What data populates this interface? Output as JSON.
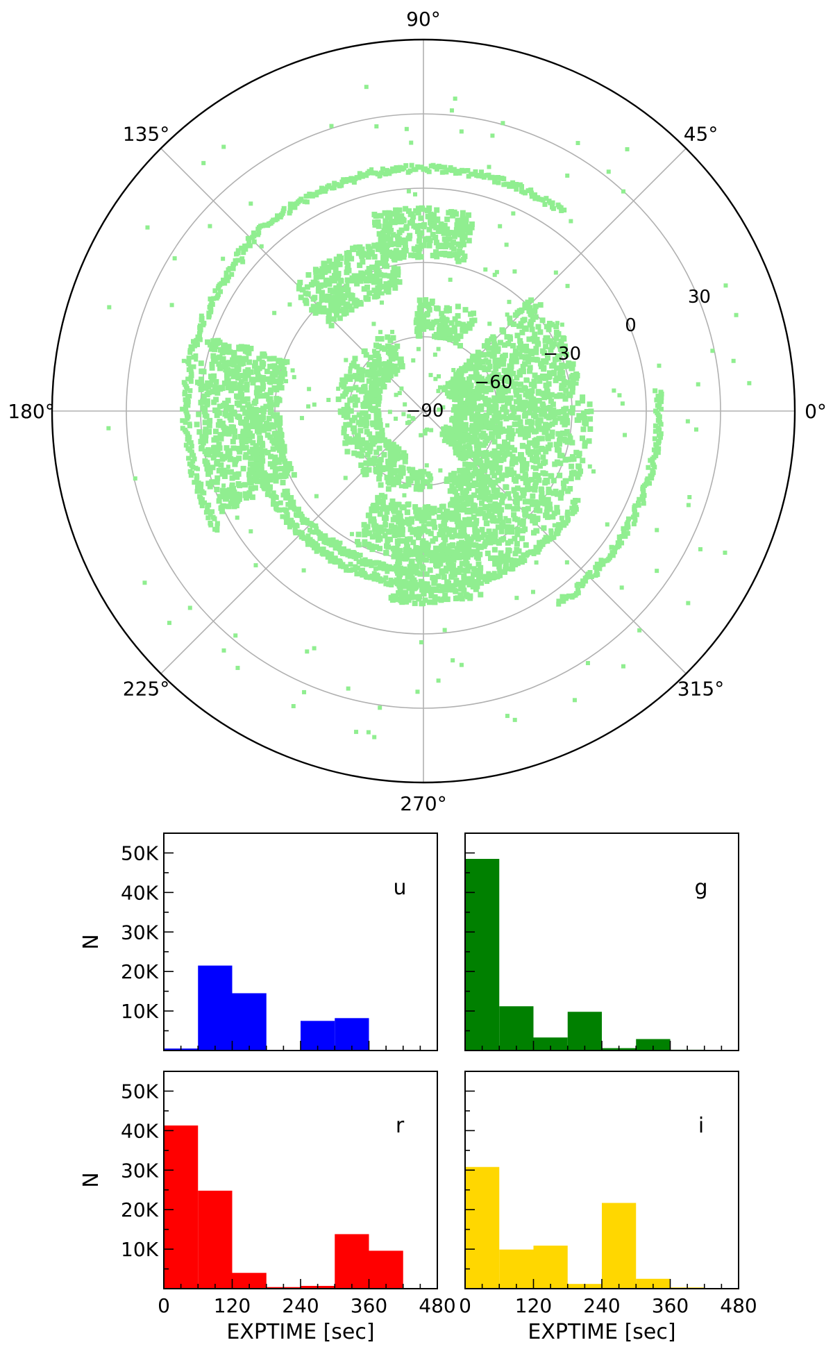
{
  "chart_data": [
    {
      "type": "scatter",
      "projection": "polar",
      "theta_unit": "degrees",
      "angular_ticks": [
        "0°",
        "45°",
        "90°",
        "135°",
        "180°",
        "225°",
        "270°",
        "315°"
      ],
      "angular_tick_values": [
        0,
        45,
        90,
        135,
        180,
        225,
        270,
        315
      ],
      "radial_ticks": [
        "−90",
        "−60",
        "−30",
        "0",
        "30"
      ],
      "radial_tick_values": [
        -90,
        -60,
        -30,
        0,
        30
      ],
      "rlim": [
        -90,
        60
      ],
      "grid": true,
      "color": "#90EE90",
      "regions": [
        {
          "theta": [
            100,
            138
          ],
          "r": [
            -40,
            -18
          ]
        },
        {
          "theta": [
            160,
            207
          ],
          "r": [
            -32,
            2
          ]
        },
        {
          "theta": [
            75,
            105
          ],
          "r": [
            -28,
            -8
          ]
        },
        {
          "theta": [
            5,
            48
          ],
          "r": [
            -78,
            -26
          ]
        },
        {
          "theta": [
            -52,
            5
          ],
          "r": [
            -78,
            -22
          ]
        },
        {
          "theta": [
            -72,
            -52
          ],
          "r": [
            -62,
            -20
          ]
        },
        {
          "theta": [
            -118,
            -70
          ],
          "r": [
            -52,
            -30
          ]
        },
        {
          "theta": [
            -100,
            -72
          ],
          "r": [
            -35,
            -12
          ]
        },
        {
          "theta": [
            112,
            252
          ],
          "r": [
            -72,
            -55
          ]
        },
        {
          "theta": [
            60,
            95
          ],
          "r": [
            -60,
            -45
          ]
        },
        {
          "theta": [
            -125,
            -82
          ],
          "r": [
            -66,
            -58
          ]
        }
      ],
      "arcs": [
        {
          "theta": [
            55,
            140
          ],
          "r": 8
        },
        {
          "theta": [
            -160,
            -90
          ],
          "r": -20
        },
        {
          "theta": [
            -85,
            -30
          ],
          "r": -18
        },
        {
          "theta": [
            140,
            210
          ],
          "r": 6
        },
        {
          "theta": [
            -55,
            5
          ],
          "r": 5
        },
        {
          "theta": [
            -150,
            -95
          ],
          "r": -25
        }
      ]
    },
    {
      "type": "bar",
      "band": "u",
      "color": "#0000FF",
      "bin_edges": [
        0,
        60,
        120,
        180,
        240,
        300,
        360,
        420,
        480
      ],
      "values": [
        500,
        21500,
        14500,
        0,
        7500,
        8200,
        0,
        0
      ],
      "ylim": [
        0,
        55000
      ],
      "yticks": [
        10000,
        20000,
        30000,
        40000,
        50000
      ],
      "ytick_labels": [
        "10K",
        "20K",
        "30K",
        "40K",
        "50K"
      ],
      "ylabel": "N"
    },
    {
      "type": "bar",
      "band": "g",
      "color": "#008000",
      "bin_edges": [
        0,
        60,
        120,
        180,
        240,
        300,
        360,
        420,
        480
      ],
      "values": [
        48500,
        11200,
        3300,
        9800,
        600,
        2900,
        200,
        0
      ],
      "ylim": [
        0,
        55000
      ],
      "yticks": [
        10000,
        20000,
        30000,
        40000,
        50000
      ],
      "ytick_labels": [
        "10K",
        "20K",
        "30K",
        "40K",
        "50K"
      ]
    },
    {
      "type": "bar",
      "band": "r",
      "color": "#FF0000",
      "bin_edges": [
        0,
        60,
        120,
        180,
        240,
        300,
        360,
        420,
        480
      ],
      "values": [
        41300,
        24800,
        4000,
        400,
        700,
        13800,
        9600,
        0
      ],
      "ylim": [
        0,
        55000
      ],
      "yticks": [
        10000,
        20000,
        30000,
        40000,
        50000
      ],
      "ytick_labels": [
        "10K",
        "20K",
        "30K",
        "40K",
        "50K"
      ],
      "xticks": [
        0,
        120,
        240,
        360,
        480
      ],
      "xtick_labels": [
        "0",
        "120",
        "240",
        "360",
        "480"
      ],
      "xlabel": "EXPTIME [sec]",
      "ylabel": "N"
    },
    {
      "type": "bar",
      "band": "i",
      "color": "#FFD700",
      "bin_edges": [
        0,
        60,
        120,
        180,
        240,
        300,
        360,
        420,
        480
      ],
      "values": [
        30800,
        9900,
        10900,
        1200,
        21700,
        2500,
        300,
        0
      ],
      "ylim": [
        0,
        55000
      ],
      "yticks": [
        10000,
        20000,
        30000,
        40000,
        50000
      ],
      "ytick_labels": [
        "10K",
        "20K",
        "30K",
        "40K",
        "50K"
      ],
      "xticks": [
        0,
        120,
        240,
        360,
        480
      ],
      "xtick_labels": [
        "0",
        "120",
        "240",
        "360",
        "480"
      ],
      "xlabel": "EXPTIME [sec]"
    }
  ]
}
